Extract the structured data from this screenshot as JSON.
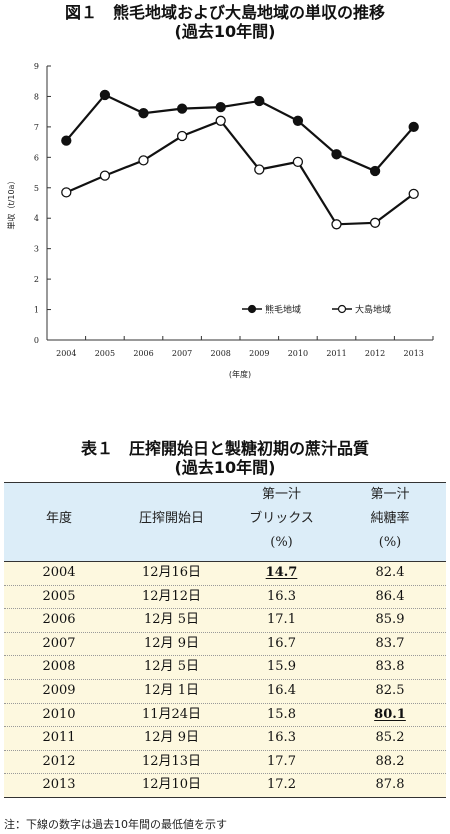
{
  "figure": {
    "title_line1": "図１　熊毛地域および大島地域の単収の推移",
    "title_line2": "(過去10年間)"
  },
  "chart_data": {
    "type": "line",
    "x": [
      "2004",
      "2005",
      "2006",
      "2007",
      "2008",
      "2009",
      "2010",
      "2011",
      "2012",
      "2013"
    ],
    "xlabel": "(年度)",
    "ylabel": "単収（t/10a）",
    "ylim": [
      0,
      9
    ],
    "yticks": [
      0,
      1,
      2,
      3,
      4,
      5,
      6,
      7,
      8,
      9
    ],
    "grid": false,
    "legend_position": "bottom-right",
    "series": [
      {
        "name": "熊毛地域",
        "marker": "filled-circle",
        "color": "#111111",
        "values": [
          6.55,
          8.05,
          7.45,
          7.6,
          7.65,
          7.85,
          7.2,
          6.1,
          5.55,
          7.0
        ]
      },
      {
        "name": "大島地域",
        "marker": "open-circle",
        "color": "#111111",
        "values": [
          4.85,
          5.4,
          5.9,
          6.7,
          7.2,
          5.6,
          5.85,
          3.8,
          3.85,
          4.8
        ]
      }
    ]
  },
  "table": {
    "title_line1": "表１　圧搾開始日と製糖初期の蔗汁品質",
    "title_line2": "(過去10年間)",
    "headers": {
      "year": "年度",
      "start_date": "圧搾開始日",
      "brix_l1": "第一汁",
      "brix_l2": "ブリックス",
      "brix_l3": "(%)",
      "purity_l1": "第一汁",
      "purity_l2": "純糖率",
      "purity_l3": "(%)"
    },
    "rows": [
      {
        "year": "2004",
        "date": "12月16日",
        "brix": "14.7",
        "purity": "82.4",
        "brix_min": true,
        "purity_min": false
      },
      {
        "year": "2005",
        "date": "12月12日",
        "brix": "16.3",
        "purity": "86.4",
        "brix_min": false,
        "purity_min": false
      },
      {
        "year": "2006",
        "date": "12月 5日",
        "brix": "17.1",
        "purity": "85.9",
        "brix_min": false,
        "purity_min": false
      },
      {
        "year": "2007",
        "date": "12月 9日",
        "brix": "16.7",
        "purity": "83.7",
        "brix_min": false,
        "purity_min": false
      },
      {
        "year": "2008",
        "date": "12月 5日",
        "brix": "15.9",
        "purity": "83.8",
        "brix_min": false,
        "purity_min": false
      },
      {
        "year": "2009",
        "date": "12月 1日",
        "brix": "16.4",
        "purity": "82.5",
        "brix_min": false,
        "purity_min": false
      },
      {
        "year": "2010",
        "date": "11月24日",
        "brix": "15.8",
        "purity": "80.1",
        "brix_min": false,
        "purity_min": true
      },
      {
        "year": "2011",
        "date": "12月 9日",
        "brix": "16.3",
        "purity": "85.2",
        "brix_min": false,
        "purity_min": false
      },
      {
        "year": "2012",
        "date": "12月13日",
        "brix": "17.7",
        "purity": "88.2",
        "brix_min": false,
        "purity_min": false
      },
      {
        "year": "2013",
        "date": "12月10日",
        "brix": "17.2",
        "purity": "87.8",
        "brix_min": false,
        "purity_min": false
      }
    ],
    "note": "注：下線の数字は過去10年間の最低値を示す"
  }
}
